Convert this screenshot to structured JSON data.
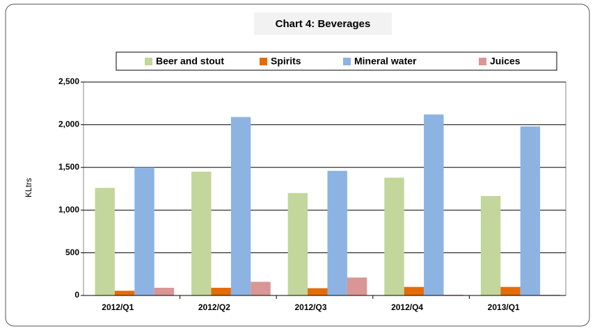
{
  "chart_data": {
    "type": "bar",
    "title": "Chart 4: Beverages",
    "y_label": "KLtrs",
    "categories": [
      "2012/Q1",
      "2012/Q2",
      "2012/Q3",
      "2012/Q4",
      "2013/Q1"
    ],
    "series": [
      {
        "name": "Beer and stout",
        "color": "#c3d69b",
        "values": [
          1260,
          1450,
          1200,
          1380,
          1165
        ]
      },
      {
        "name": "Spirits",
        "color": "#e36c09",
        "values": [
          55,
          90,
          85,
          100,
          100
        ]
      },
      {
        "name": "Mineral water",
        "color": "#8db3e2",
        "values": [
          1500,
          2090,
          1460,
          2120,
          1980
        ]
      },
      {
        "name": "Juices",
        "color": "#d99694",
        "values": [
          90,
          160,
          210,
          8,
          8
        ]
      }
    ],
    "ylim": [
      0,
      2500
    ],
    "yticks": [
      0,
      500,
      {
        "value": 1000,
        "label": "1,000"
      },
      {
        "value": 1500,
        "label": "1,500"
      },
      {
        "value": 2000,
        "label": "2,000"
      },
      {
        "value": 2500,
        "label": "2,500"
      }
    ],
    "grid": true,
    "legend": "top"
  }
}
